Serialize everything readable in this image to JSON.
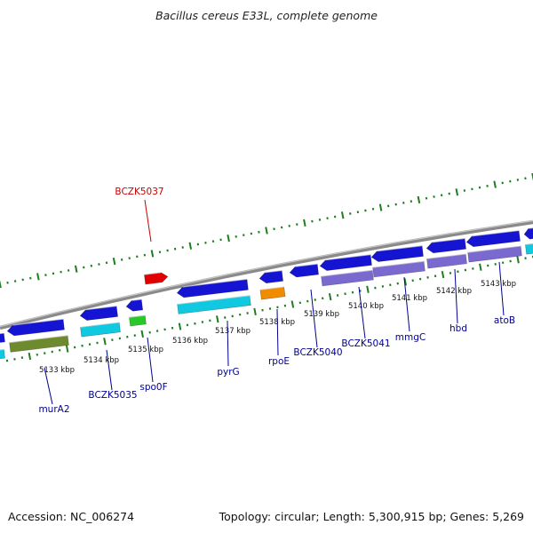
{
  "title": "Bacillus cereus E33L, complete genome",
  "footer": {
    "accession": "Accession: NC_006274",
    "summary": "Topology: circular; Length: 5,300,915 bp; Genes: 5,269"
  },
  "colors": {
    "backbone": "#8a8a8a",
    "ticks": "#1e7d1e",
    "cds_blue": "#1414d2",
    "cyan": "#10c8e0",
    "olive": "#6e8a2e",
    "green": "#28c828",
    "orange": "#f08c00",
    "purple": "#7a6ad0",
    "red": "#e00000",
    "label_blue": "#00008b",
    "label_red": "#c80000"
  },
  "kbp_labels": [
    "5133 kbp",
    "5134 kbp",
    "5135 kbp",
    "5136 kbp",
    "5137 kbp",
    "5138 kbp",
    "5139 kbp",
    "5140 kbp",
    "5141 kbp",
    "5142 kbp",
    "5143 kbp"
  ],
  "genes": [
    {
      "name": "BCZK5037",
      "color": "red"
    },
    {
      "name": "murA2",
      "color": "blue"
    },
    {
      "name": "BCZK5035",
      "color": "blue"
    },
    {
      "name": "spo0F",
      "color": "blue"
    },
    {
      "name": "pyrG",
      "color": "blue"
    },
    {
      "name": "rpoE",
      "color": "blue"
    },
    {
      "name": "BCZK5040",
      "color": "blue"
    },
    {
      "name": "BCZK5041",
      "color": "blue"
    },
    {
      "name": "mmgC",
      "color": "blue"
    },
    {
      "name": "hbd",
      "color": "blue"
    },
    {
      "name": "atoB",
      "color": "blue"
    }
  ]
}
